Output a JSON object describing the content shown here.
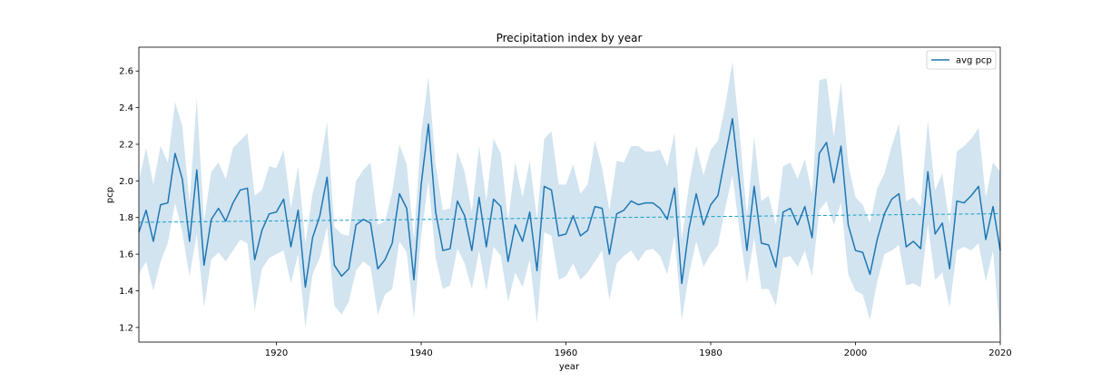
{
  "chart_data": {
    "type": "line",
    "title": "Precipitation index by year",
    "xlabel": "year",
    "ylabel": "pcp",
    "xlim": [
      1901,
      2020
    ],
    "ylim": [
      1.12,
      2.73
    ],
    "xticks": [
      1920,
      1940,
      1960,
      1980,
      2000,
      2020
    ],
    "yticks": [
      1.2,
      1.4,
      1.6,
      1.8,
      2.0,
      2.2,
      2.4,
      2.6
    ],
    "legend": {
      "position": "top-right",
      "entries": [
        "avg pcp"
      ]
    },
    "grid": false,
    "colors": {
      "line": "#1f77b4",
      "band": "#1f77b4",
      "trend": "#17a2c8"
    },
    "series": [
      {
        "name": "avg pcp",
        "x": [
          1901,
          1902,
          1903,
          1904,
          1905,
          1906,
          1907,
          1908,
          1909,
          1910,
          1911,
          1912,
          1913,
          1914,
          1915,
          1916,
          1917,
          1918,
          1919,
          1920,
          1921,
          1922,
          1923,
          1924,
          1925,
          1926,
          1927,
          1928,
          1929,
          1930,
          1931,
          1932,
          1933,
          1934,
          1935,
          1936,
          1937,
          1938,
          1939,
          1940,
          1941,
          1942,
          1943,
          1944,
          1945,
          1946,
          1947,
          1948,
          1949,
          1950,
          1951,
          1952,
          1953,
          1954,
          1955,
          1956,
          1957,
          1958,
          1959,
          1960,
          1961,
          1962,
          1963,
          1964,
          1965,
          1966,
          1967,
          1968,
          1969,
          1970,
          1971,
          1972,
          1973,
          1974,
          1975,
          1976,
          1977,
          1978,
          1979,
          1980,
          1981,
          1982,
          1983,
          1984,
          1985,
          1986,
          1987,
          1988,
          1989,
          1990,
          1991,
          1992,
          1993,
          1994,
          1995,
          1996,
          1997,
          1998,
          1999,
          2000,
          2001,
          2002,
          2003,
          2004,
          2005,
          2006,
          2007,
          2008,
          2009,
          2010,
          2011,
          2012,
          2013,
          2014,
          2015,
          2016,
          2017,
          2018,
          2019,
          2020
        ],
        "y": [
          1.72,
          1.84,
          1.67,
          1.87,
          1.88,
          2.15,
          2.01,
          1.67,
          2.06,
          1.54,
          1.79,
          1.85,
          1.78,
          1.88,
          1.95,
          1.96,
          1.57,
          1.73,
          1.82,
          1.83,
          1.9,
          1.64,
          1.84,
          1.42,
          1.69,
          1.81,
          2.02,
          1.54,
          1.48,
          1.52,
          1.76,
          1.79,
          1.77,
          1.52,
          1.57,
          1.66,
          1.93,
          1.85,
          1.46,
          1.98,
          2.31,
          1.83,
          1.62,
          1.63,
          1.89,
          1.81,
          1.62,
          1.91,
          1.64,
          1.9,
          1.86,
          1.56,
          1.76,
          1.67,
          1.83,
          1.51,
          1.97,
          1.95,
          1.7,
          1.71,
          1.81,
          1.7,
          1.73,
          1.86,
          1.85,
          1.6,
          1.82,
          1.84,
          1.89,
          1.87,
          1.88,
          1.88,
          1.85,
          1.79,
          1.96,
          1.44,
          1.74,
          1.93,
          1.76,
          1.87,
          1.92,
          2.13,
          2.34,
          1.98,
          1.62,
          1.97,
          1.66,
          1.65,
          1.53,
          1.83,
          1.85,
          1.76,
          1.86,
          1.69,
          2.15,
          2.21,
          1.99,
          2.19,
          1.76,
          1.62,
          1.61,
          1.49,
          1.68,
          1.82,
          1.9,
          1.93,
          1.64,
          1.67,
          1.63,
          2.05,
          1.71,
          1.77,
          1.52,
          1.89,
          1.88,
          1.92,
          1.97,
          1.68,
          1.86,
          1.62
        ]
      }
    ],
    "band": {
      "lower": [
        1.49,
        1.56,
        1.4,
        1.56,
        1.66,
        1.88,
        1.72,
        1.48,
        1.71,
        1.31,
        1.57,
        1.61,
        1.56,
        1.62,
        1.68,
        1.66,
        1.29,
        1.52,
        1.58,
        1.6,
        1.62,
        1.44,
        1.6,
        1.2,
        1.49,
        1.58,
        1.75,
        1.32,
        1.27,
        1.34,
        1.51,
        1.56,
        1.53,
        1.27,
        1.38,
        1.41,
        1.67,
        1.61,
        1.25,
        1.7,
        2.0,
        1.58,
        1.41,
        1.43,
        1.63,
        1.55,
        1.41,
        1.62,
        1.4,
        1.64,
        1.59,
        1.34,
        1.5,
        1.42,
        1.57,
        1.22,
        1.72,
        1.7,
        1.46,
        1.48,
        1.55,
        1.46,
        1.5,
        1.56,
        1.62,
        1.35,
        1.55,
        1.59,
        1.62,
        1.56,
        1.62,
        1.63,
        1.59,
        1.49,
        1.7,
        1.24,
        1.49,
        1.67,
        1.53,
        1.6,
        1.65,
        1.85,
        2.03,
        1.72,
        1.44,
        1.69,
        1.41,
        1.41,
        1.32,
        1.58,
        1.59,
        1.53,
        1.62,
        1.48,
        1.84,
        1.89,
        1.76,
        1.88,
        1.49,
        1.4,
        1.38,
        1.24,
        1.45,
        1.6,
        1.62,
        1.65,
        1.43,
        1.44,
        1.42,
        1.76,
        1.46,
        1.5,
        1.31,
        1.62,
        1.64,
        1.62,
        1.66,
        1.45,
        1.62,
        1.14
      ],
      "upper": [
        2.0,
        2.18,
        1.98,
        2.19,
        2.1,
        2.43,
        2.3,
        1.88,
        2.45,
        1.78,
        2.05,
        2.1,
        2.01,
        2.18,
        2.22,
        2.26,
        1.92,
        1.95,
        2.08,
        2.07,
        2.17,
        1.85,
        2.08,
        1.66,
        1.93,
        2.08,
        2.32,
        1.75,
        1.71,
        1.7,
        2.0,
        2.06,
        2.1,
        1.76,
        1.78,
        1.94,
        2.2,
        2.09,
        1.68,
        2.26,
        2.57,
        2.09,
        1.84,
        1.85,
        2.16,
        2.05,
        1.83,
        2.19,
        1.89,
        2.23,
        2.15,
        1.78,
        2.1,
        1.91,
        2.11,
        1.79,
        2.23,
        2.27,
        1.98,
        1.98,
        2.09,
        1.93,
        1.98,
        2.22,
        2.07,
        1.84,
        2.11,
        2.1,
        2.19,
        2.19,
        2.16,
        2.16,
        2.17,
        2.08,
        2.26,
        1.68,
        1.98,
        2.19,
        2.03,
        2.17,
        2.22,
        2.41,
        2.65,
        2.26,
        1.81,
        2.24,
        1.89,
        1.92,
        1.76,
        2.08,
        2.1,
        2.01,
        2.12,
        1.93,
        2.55,
        2.56,
        2.24,
        2.54,
        2.09,
        1.91,
        1.87,
        1.77,
        1.96,
        2.04,
        2.19,
        2.31,
        1.89,
        1.91,
        1.86,
        2.33,
        1.95,
        2.04,
        1.76,
        2.16,
        2.19,
        2.23,
        2.29,
        1.91,
        2.1,
        2.05
      ]
    },
    "trend": {
      "x": [
        1901,
        2020
      ],
      "y": [
        1.774,
        1.821
      ],
      "style": "dashed"
    }
  }
}
